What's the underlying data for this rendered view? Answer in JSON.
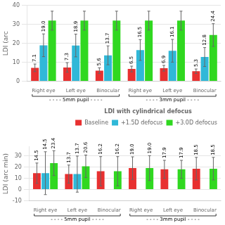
{
  "chart_data": [
    {
      "type": "bar",
      "ylabel": "LDI (arc",
      "categories": [
        "Right eye",
        "Left eye",
        "Binocular",
        "Right eye",
        "Left eye",
        "Binocular"
      ],
      "series": [
        {
          "color": "#e83030",
          "values": [
            7.1,
            7.3,
            5.6,
            6.5,
            6.9,
            5.3
          ],
          "errors": [
            2.0,
            2.5,
            1.5,
            1.5,
            1.5,
            1.2
          ],
          "value_labels": [
            "7.1",
            "7.3",
            "5.6",
            "6.5",
            "6.9",
            "5.3"
          ]
        },
        {
          "color": "#30b8d8",
          "values": [
            19.0,
            18.9,
            13.7,
            16.5,
            16.1,
            12.8
          ],
          "errors": [
            6.0,
            6.0,
            5.0,
            5.5,
            6.0,
            5.0
          ],
          "value_labels": [
            "19.0",
            "18.9",
            "13.7",
            "16.5",
            "16.1",
            "12.8"
          ]
        },
        {
          "color": "#30d820",
          "values": [
            32,
            32,
            32,
            32,
            32,
            24.4
          ],
          "errors": [
            5.0,
            5.0,
            5.0,
            5.0,
            5.0,
            6.0
          ],
          "value_labels": [
            null,
            null,
            null,
            null,
            null,
            "24.4"
          ]
        }
      ],
      "annotations": [
        {
          "text": "- - - - 5mm pupil - - - -",
          "span": [
            0,
            2
          ]
        },
        {
          "text": "- - - - 3mm pupil - - - -",
          "span": [
            3,
            5
          ]
        }
      ],
      "ylim": [
        0,
        40
      ],
      "yticks": [
        0,
        10,
        20,
        30,
        40
      ],
      "grid": "y",
      "legend": false,
      "data_labels": true
    },
    {
      "type": "bar",
      "ylabel": "LDI (arc min)",
      "legend_title": "LDI with cylindrical defocus",
      "categories": [
        "Right eye",
        "Left eye",
        "Binocular",
        "Right eye",
        "Left eye",
        "Binocular"
      ],
      "series": [
        {
          "name": "Baseline",
          "color": "#e83030",
          "values": [
            14.5,
            13.7,
            16.2,
            19.0,
            17.9,
            18.5
          ],
          "errors": [
            9.0,
            8.0,
            13.0,
            10.0,
            8.0,
            10.0
          ],
          "value_labels": [
            "14.5",
            "13.7",
            "16.2",
            "19.0",
            "17.9",
            "18.5"
          ]
        },
        {
          "name": "+1.5D defocus",
          "color": "#30b8d8",
          "values": [
            14.5,
            13.7,
            0.0,
            0.0,
            0.0,
            0.0
          ],
          "errors": [
            19.0,
            16.0,
            0.0,
            0.0,
            0.0,
            0.0
          ],
          "value_labels": [
            "14.5",
            "13.7",
            null,
            null,
            null,
            null
          ]
        },
        {
          "name": "+3.0D defocus",
          "color": "#30d820",
          "values": [
            23.4,
            20.6,
            16.2,
            19.0,
            17.9,
            18.5
          ],
          "errors": [
            11.0,
            10.0,
            13.0,
            11.0,
            8.0,
            10.0
          ],
          "value_labels": [
            "23.4",
            "20.6",
            "16.2",
            "19.0",
            "17.9",
            "18.5"
          ]
        }
      ],
      "annotations": [
        {
          "text": "- - - - 5mm pupil - - - -",
          "span": [
            0,
            2
          ]
        },
        {
          "text": "- - - - 3mm pupil - - - -",
          "span": [
            3,
            5
          ]
        }
      ],
      "ylim": [
        -10,
        38
      ],
      "yticks": [
        -10,
        0,
        10,
        20,
        30
      ],
      "grid": "y",
      "legend": "upper right",
      "data_labels": true
    }
  ]
}
